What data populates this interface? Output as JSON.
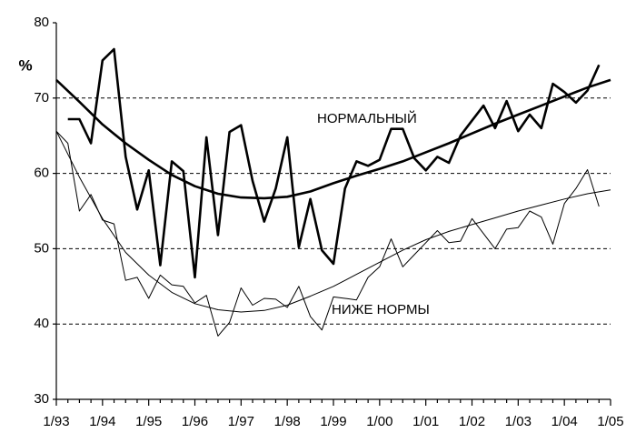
{
  "chart_data": {
    "type": "line",
    "y_label": "%",
    "xlim": [
      1993,
      2005
    ],
    "xticks": [
      {
        "value": 1993,
        "label": "1/93"
      },
      {
        "value": 1994,
        "label": "1/94"
      },
      {
        "value": 1995,
        "label": "1/95"
      },
      {
        "value": 1996,
        "label": "1/96"
      },
      {
        "value": 1997,
        "label": "1/97"
      },
      {
        "value": 1998,
        "label": "1/98"
      },
      {
        "value": 1999,
        "label": "1/99"
      },
      {
        "value": 2000,
        "label": "1/00"
      },
      {
        "value": 2001,
        "label": "1/01"
      },
      {
        "value": 2002,
        "label": "1/02"
      },
      {
        "value": 2003,
        "label": "1/03"
      },
      {
        "value": 2004,
        "label": "1/04"
      },
      {
        "value": 2005,
        "label": "1/05"
      }
    ],
    "ylim": [
      30,
      80
    ],
    "yticks": [
      30,
      40,
      50,
      60,
      70,
      80
    ],
    "grid": true,
    "series": [
      {
        "name": "НОРМАЛЬНЫЙ",
        "color": "#000000",
        "width": 2.6,
        "x": [
          1993.25,
          1993.5,
          1993.75,
          1994,
          1994.25,
          1994.5,
          1994.75,
          1995,
          1995.25,
          1995.5,
          1995.75,
          1996,
          1996.25,
          1996.5,
          1996.75,
          1997,
          1997.25,
          1997.5,
          1997.75,
          1998,
          1998.25,
          1998.5,
          1998.75,
          1999,
          1999.25,
          1999.5,
          1999.75,
          2000,
          2000.25,
          2000.5,
          2000.75,
          2001,
          2001.25,
          2001.5,
          2001.75,
          2002,
          2002.25,
          2002.5,
          2002.75,
          2003,
          2003.25,
          2003.5,
          2003.75,
          2004,
          2004.25,
          2004.5,
          2004.75
        ],
        "values": [
          67.2,
          67.2,
          64,
          75,
          76.5,
          62.2,
          55.2,
          60.4,
          47.8,
          61.6,
          60.3,
          46.2,
          64.8,
          51.8,
          65.5,
          66.4,
          59,
          53.6,
          58,
          64.8,
          50.2,
          56.6,
          49.8,
          48,
          58,
          61.6,
          61,
          61.8,
          65.9,
          65.9,
          62,
          60.4,
          62.2,
          61.4,
          65,
          67,
          69,
          66,
          69.6,
          65.6,
          67.8,
          66,
          71.9,
          70.8,
          69.4,
          71,
          74.4
        ]
      },
      {
        "color": "#000000",
        "width": 2.6,
        "x": [
          1993,
          1993.5,
          1994,
          1994.5,
          1995,
          1995.5,
          1996,
          1996.5,
          1997,
          1997.5,
          1998,
          1998.5,
          1999,
          1999.5,
          2000,
          2000.5,
          2001,
          2001.5,
          2002,
          2002.5,
          2003,
          2003.5,
          2004,
          2004.5,
          2005
        ],
        "values": [
          72.4,
          69.5,
          66.5,
          64,
          61.8,
          59.8,
          58.3,
          57.3,
          56.8,
          56.7,
          56.9,
          57.6,
          58.7,
          59.7,
          60.6,
          61.6,
          62.8,
          64,
          65.3,
          66.6,
          67.8,
          69,
          70.2,
          71.4,
          72.4
        ]
      },
      {
        "name": "НИЖЕ НОРМЫ",
        "color": "#000000",
        "width": 1,
        "x": [
          1993,
          1993.25,
          1993.5,
          1993.75,
          1994,
          1994.25,
          1994.5,
          1994.75,
          1995,
          1995.25,
          1995.5,
          1995.75,
          1996,
          1996.25,
          1996.5,
          1996.75,
          1997,
          1997.25,
          1997.5,
          1997.75,
          1998,
          1998.25,
          1998.5,
          1998.75,
          1999,
          1999.25,
          1999.5,
          1999.75,
          2000,
          2000.25,
          2000.5,
          2000.75,
          2001,
          2001.25,
          2001.5,
          2001.75,
          2002,
          2002.25,
          2002.5,
          2002.75,
          2003,
          2003.25,
          2003.5,
          2003.75,
          2004,
          2004.25,
          2004.5,
          2004.75
        ],
        "values": [
          65.6,
          64,
          55,
          57.2,
          53.8,
          53.3,
          45.8,
          46.2,
          43.4,
          46.5,
          45.2,
          45,
          42.8,
          43.8,
          38.4,
          40.2,
          44.8,
          42.5,
          43.4,
          43.3,
          42.2,
          45,
          41,
          39.2,
          43.6,
          43.4,
          43.2,
          46.2,
          47.6,
          51.3,
          47.6,
          49.2,
          50.8,
          52.4,
          50.8,
          51,
          54,
          52,
          50,
          52.6,
          52.8,
          55,
          54.2,
          50.6,
          56,
          58,
          60.5,
          55.6
        ]
      },
      {
        "color": "#000000",
        "width": 1,
        "x": [
          1993,
          1993.5,
          1994,
          1994.5,
          1995,
          1995.5,
          1996,
          1996.5,
          1997,
          1997.5,
          1998,
          1998.5,
          1999,
          1999.5,
          2000,
          2000.5,
          2001,
          2001.5,
          2002,
          2002.5,
          2003,
          2003.5,
          2004,
          2004.5,
          2005
        ],
        "values": [
          65.6,
          59.5,
          54,
          49.5,
          46.5,
          44.2,
          42.7,
          41.9,
          41.6,
          41.8,
          42.5,
          43.7,
          45,
          46.6,
          48.2,
          49.8,
          51.2,
          52.3,
          53.2,
          54.1,
          55,
          55.8,
          56.6,
          57.3,
          57.8
        ]
      }
    ]
  }
}
